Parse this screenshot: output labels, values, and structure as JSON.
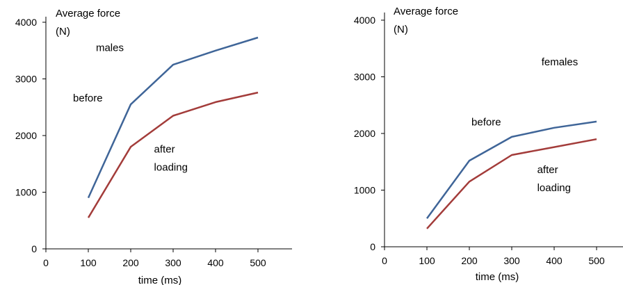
{
  "chart_data": [
    {
      "type": "line",
      "title": "",
      "ylabel_lines": [
        "Average force",
        "(N)"
      ],
      "xlabel": "time (ms)",
      "xlim": [
        0,
        500
      ],
      "ylim": [
        0,
        4000
      ],
      "x_ticks": [
        0,
        100,
        200,
        300,
        400,
        500
      ],
      "y_ticks": [
        0,
        1000,
        2000,
        3000,
        4000
      ],
      "grid": false,
      "legend": "none",
      "series": [
        {
          "name": "before",
          "color": "#3f6598",
          "x": [
            100,
            200,
            300,
            400,
            500
          ],
          "y": [
            900,
            2550,
            3250,
            3500,
            3730
          ]
        },
        {
          "name": "after loading",
          "color": "#a33c3a",
          "x": [
            100,
            200,
            300,
            400,
            500
          ],
          "y": [
            550,
            1800,
            2350,
            2590,
            2760
          ]
        }
      ],
      "annotations": [
        {
          "id": "group",
          "lines": [
            "males"
          ],
          "x": 118,
          "y": 3490
        },
        {
          "id": "before",
          "lines": [
            "before"
          ],
          "x": 64,
          "y": 2600
        },
        {
          "id": "after",
          "lines": [
            "after",
            "loading"
          ],
          "x": 255,
          "y": 1700
        }
      ]
    },
    {
      "type": "line",
      "title": "",
      "ylabel_lines": [
        "Average force",
        "(N)"
      ],
      "xlabel": "time (ms)",
      "xlim": [
        0,
        500
      ],
      "ylim": [
        0,
        4000
      ],
      "x_ticks": [
        0,
        100,
        200,
        300,
        400,
        500
      ],
      "y_ticks": [
        0,
        1000,
        2000,
        3000,
        4000
      ],
      "grid": false,
      "legend": "none",
      "series": [
        {
          "name": "before",
          "color": "#3f6598",
          "x": [
            100,
            200,
            300,
            400,
            500
          ],
          "y": [
            500,
            1520,
            1940,
            2100,
            2210
          ]
        },
        {
          "name": "after loading",
          "color": "#a33c3a",
          "x": [
            100,
            200,
            300,
            400,
            500
          ],
          "y": [
            320,
            1150,
            1620,
            1760,
            1900
          ]
        }
      ],
      "annotations": [
        {
          "id": "group",
          "lines": [
            "females"
          ],
          "x": 370,
          "y": 3200
        },
        {
          "id": "before",
          "lines": [
            "before"
          ],
          "x": 205,
          "y": 2140
        },
        {
          "id": "after",
          "lines": [
            "after",
            "loading"
          ],
          "x": 360,
          "y": 1300
        }
      ]
    }
  ]
}
